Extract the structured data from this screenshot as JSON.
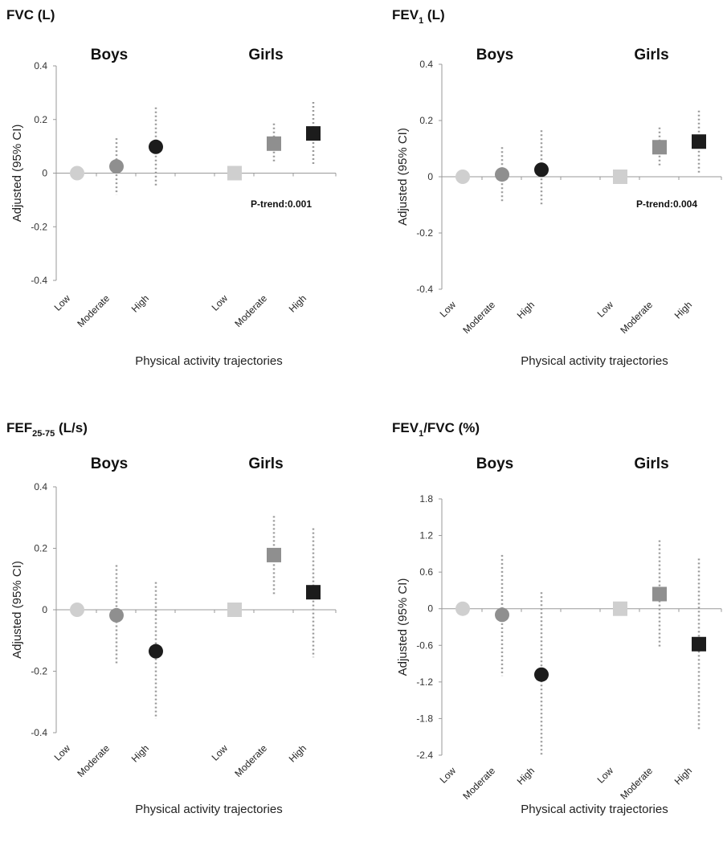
{
  "chart_data": [
    {
      "type": "scatter",
      "title": "FVC (L)",
      "title_base": "FVC",
      "title_sub": "",
      "title_rest": " (L)",
      "groups": [
        "Boys",
        "Girls"
      ],
      "categories": [
        "Low",
        "Moderate",
        "High",
        "Low",
        "Moderate",
        "High"
      ],
      "ylabel": "Adjusted    (95% CI)",
      "xlabel": "Physical activity trajectories",
      "yticks": [
        0.4,
        0.2,
        0,
        -0.2,
        -0.4
      ],
      "ytick_labels": [
        "0.4",
        "0.2",
        "0",
        "-0.2",
        "-0.4"
      ],
      "ylim": [
        -0.4,
        0.4
      ],
      "annotation": "P-trend:0.001",
      "series": [
        {
          "group": "Boys",
          "marker": "circle",
          "values": [
            0,
            0.025,
            0.098
          ],
          "ci_low": [
            null,
            -0.08,
            -0.05
          ],
          "ci_high": [
            null,
            0.13,
            0.245
          ]
        },
        {
          "group": "Girls",
          "marker": "square",
          "values": [
            0,
            0.11,
            0.148
          ],
          "ci_low": [
            null,
            0.04,
            0.03
          ],
          "ci_high": [
            null,
            0.185,
            0.265
          ]
        }
      ],
      "colors": [
        "#cfcfcf",
        "#8f8f8f",
        "#1c1c1c"
      ]
    },
    {
      "type": "scatter",
      "title": "FEV1 (L)",
      "title_base": "FEV",
      "title_sub": "1",
      "title_rest": " (L)",
      "groups": [
        "Boys",
        "Girls"
      ],
      "categories": [
        "Low",
        "Moderate",
        "High",
        "Low",
        "Moderate",
        "High"
      ],
      "ylabel": "Adjusted    (95% CI)",
      "xlabel": "Physical activity trajectories",
      "yticks": [
        0.4,
        0.2,
        0,
        -0.2,
        -0.4
      ],
      "ytick_labels": [
        "0.4",
        "0.2",
        "0",
        "-0.2",
        "-0.4"
      ],
      "ylim": [
        -0.4,
        0.4
      ],
      "annotation": "P-trend:0.004",
      "series": [
        {
          "group": "Boys",
          "marker": "circle",
          "values": [
            0,
            0.008,
            0.025
          ],
          "ci_low": [
            null,
            -0.09,
            -0.105
          ],
          "ci_high": [
            null,
            0.105,
            0.165
          ]
        },
        {
          "group": "Girls",
          "marker": "square",
          "values": [
            0,
            0.105,
            0.125
          ],
          "ci_low": [
            null,
            0.04,
            0.015
          ],
          "ci_high": [
            null,
            0.175,
            0.235
          ]
        }
      ],
      "colors": [
        "#cfcfcf",
        "#8f8f8f",
        "#1c1c1c"
      ]
    },
    {
      "type": "scatter",
      "title": "FEF25-75 (L/s)",
      "title_base": "FEF",
      "title_sub": "25-75",
      "title_rest": " (L/s)",
      "groups": [
        "Boys",
        "Girls"
      ],
      "categories": [
        "Low",
        "Moderate",
        "High",
        "Low",
        "Moderate",
        "High"
      ],
      "ylabel": "Adjusted    (95% CI)",
      "xlabel": "Physical activity trajectories",
      "yticks": [
        0.4,
        0.2,
        0,
        -0.2,
        -0.4
      ],
      "ytick_labels": [
        "0.4",
        "0.2",
        "0",
        "-0.2",
        "-0.4"
      ],
      "ylim": [
        -0.4,
        0.4
      ],
      "annotation": "",
      "series": [
        {
          "group": "Boys",
          "marker": "circle",
          "values": [
            0,
            -0.018,
            -0.135
          ],
          "ci_low": [
            null,
            -0.18,
            -0.355
          ],
          "ci_high": [
            null,
            0.145,
            0.09
          ]
        },
        {
          "group": "Girls",
          "marker": "square",
          "values": [
            0,
            0.178,
            0.057
          ],
          "ci_low": [
            null,
            0.05,
            -0.155
          ],
          "ci_high": [
            null,
            0.305,
            0.265
          ]
        }
      ],
      "colors": [
        "#cfcfcf",
        "#8f8f8f",
        "#1c1c1c"
      ]
    },
    {
      "type": "scatter",
      "title": "FEV1/FVC (%)",
      "title_base": "FEV",
      "title_sub": "1",
      "title_rest": "/FVC (%)",
      "groups": [
        "Boys",
        "Girls"
      ],
      "categories": [
        "Low",
        "Moderate",
        "High",
        "Low",
        "Moderate",
        "High"
      ],
      "ylabel": "Adjusted    (95% CI)",
      "xlabel": "Physical activity trajectories",
      "yticks": [
        1.8,
        1.2,
        0.6,
        0,
        -0.6,
        -1.2,
        -1.8,
        -2.4
      ],
      "ytick_labels": [
        "1.8",
        "1.2",
        "0.6",
        "0",
        "-0.6",
        "-1.2",
        "-1.8",
        "-2.4"
      ],
      "ylim": [
        -2.4,
        2.0
      ],
      "annotation": "",
      "series": [
        {
          "group": "Boys",
          "marker": "circle",
          "values": [
            0,
            -0.1,
            -1.08
          ],
          "ci_low": [
            null,
            -1.1,
            -2.4
          ],
          "ci_high": [
            null,
            0.88,
            0.27
          ]
        },
        {
          "group": "Girls",
          "marker": "square",
          "values": [
            0,
            0.24,
            -0.58
          ],
          "ci_low": [
            null,
            -0.62,
            -2.0
          ],
          "ci_high": [
            null,
            1.12,
            0.82
          ]
        }
      ],
      "colors": [
        "#cfcfcf",
        "#8f8f8f",
        "#1c1c1c"
      ]
    }
  ]
}
